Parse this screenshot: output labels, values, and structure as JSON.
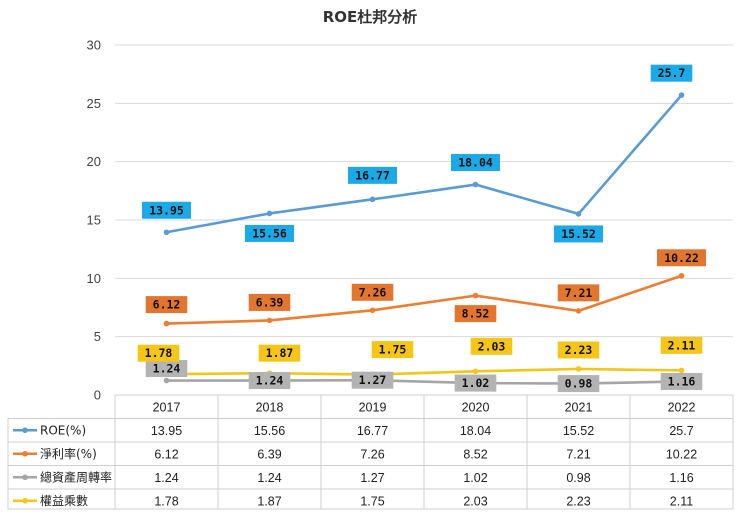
{
  "chart_data": {
    "type": "line",
    "title": "ROE杜邦分析",
    "categories": [
      "2017",
      "2018",
      "2019",
      "2020",
      "2021",
      "2022"
    ],
    "ylim": [
      0,
      30
    ],
    "yticks": [
      "0",
      "5",
      "10",
      "15",
      "20",
      "25",
      "30"
    ],
    "grid": true,
    "legend": "data-table",
    "series": [
      {
        "name": "ROE(%)",
        "color": "#5b9bd5",
        "label_bg": "#1ba9e8",
        "values": [
          13.95,
          15.56,
          16.77,
          18.04,
          15.52,
          25.7
        ],
        "labels": [
          "13.95",
          "15.56",
          "16.77",
          "18.04",
          "15.52",
          "25.7"
        ]
      },
      {
        "name": "淨利率(%)",
        "color": "#ed7d31",
        "label_bg": "#e2762f",
        "values": [
          6.12,
          6.39,
          7.26,
          8.52,
          7.21,
          10.22
        ],
        "labels": [
          "6.12",
          "6.39",
          "7.26",
          "8.52",
          "7.21",
          "10.22"
        ]
      },
      {
        "name": "總資產周轉率",
        "color": "#a5a5a5",
        "label_bg": "#b3b3b3",
        "values": [
          1.24,
          1.24,
          1.27,
          1.02,
          0.98,
          1.16
        ],
        "labels": [
          "1.24",
          "1.24",
          "1.27",
          "1.02",
          "0.98",
          "1.16"
        ]
      },
      {
        "name": "權益乘數",
        "color": "#f5c518",
        "label_bg": "#f5c518",
        "values": [
          1.78,
          1.87,
          1.75,
          2.03,
          2.23,
          2.11
        ],
        "labels": [
          "1.78",
          "1.87",
          "1.75",
          "2.03",
          "2.23",
          "2.11"
        ]
      }
    ]
  }
}
